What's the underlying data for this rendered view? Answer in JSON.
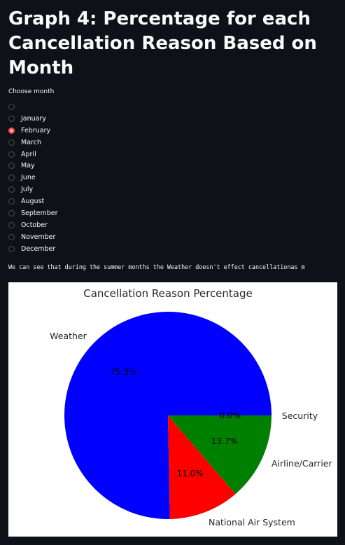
{
  "header": {
    "title": "Graph 4: Percentage for each Cancellation Reason Based on Month"
  },
  "month_selector": {
    "label": "Choose month",
    "options": [
      "",
      "January",
      "February",
      "March",
      "April",
      "May",
      "June",
      "July",
      "August",
      "September",
      "October",
      "November",
      "December"
    ],
    "selected": "February",
    "accent_color": "#ff4b4b"
  },
  "note": {
    "text": "We can see that during the summer months the Weather doesn't effect cancellationas m"
  },
  "chart_data": {
    "type": "pie",
    "title": "Cancellation Reason Percentage",
    "labels": [
      "Weather",
      "National Air System",
      "Airline/Carrier",
      "Security"
    ],
    "values": [
      75.3,
      11.0,
      13.7,
      0.0
    ],
    "value_labels": [
      "75.3%",
      "11.0%",
      "13.7%",
      "0.0%"
    ],
    "colors": [
      "#0000ff",
      "#ff0000",
      "#008000",
      "#000000"
    ],
    "background": "#ffffff"
  }
}
